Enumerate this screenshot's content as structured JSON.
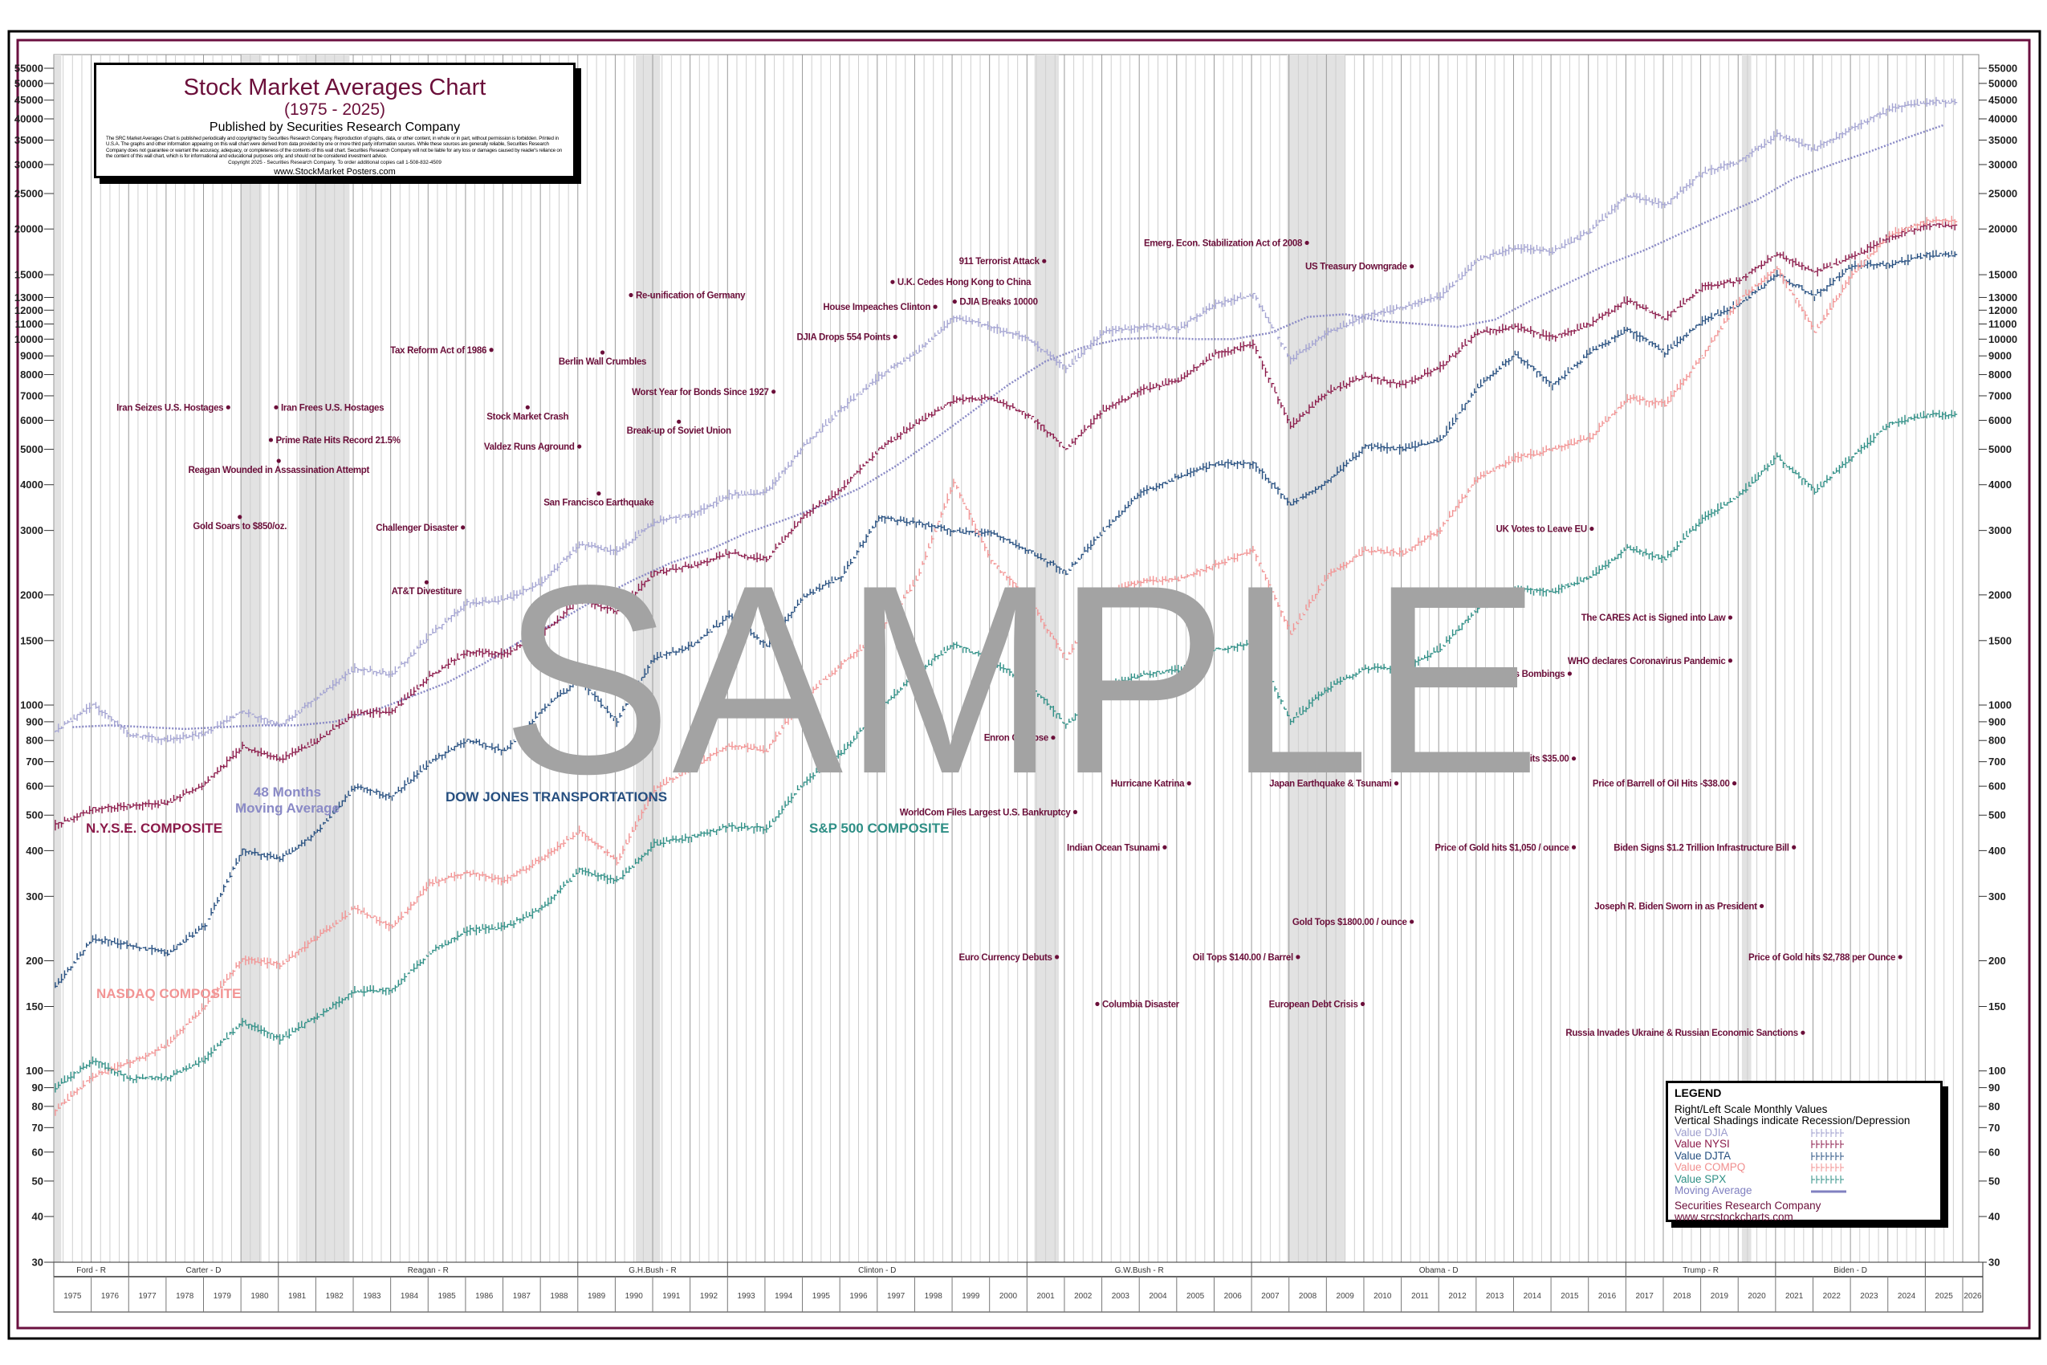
{
  "title_box": {
    "title": "Stock Market Averages Chart",
    "subtitle": "(1975 - 2025)",
    "publisher": "Published by Securities Research Company",
    "disclaimer": "The SRC Market Averages Chart is published periodically and copyrighted by Securities Research Company. Reproduction of graphs, data, or other content, in whole or in part, without permission is forbidden. Printed in U.S.A. The graphs and other information appearing on this wall chart were derived from data provided by one or more third party information sources. While these sources are generally reliable, Securities Research Company does not guarantee or warrant the accuracy, adequacy, or completeness of the contents of this wall chart. Securities Research Company will not be liable for any loss or damages caused by reader's reliance on the content of this wall chart, which is for informational and educational purposes only, and should not be considered investment advice.",
    "copyright": "Copyright 2025 - Securities Research Company. To order additional copies call 1-508-832-4509",
    "url": "www.StockMarket Posters.com"
  },
  "legend": {
    "heading": "LEGEND",
    "line1": "Right/Left Scale Monthly Values",
    "line2": "Vertical Shadings indicate Recession/Depression",
    "items": [
      {
        "label": "Value  DJIA",
        "color": "#9c9ccc",
        "symbol": "hlc-bars"
      },
      {
        "label": "Value  NYSI",
        "color": "#8b1a4a",
        "symbol": "hlc-bars"
      },
      {
        "label": "Value  DJTA",
        "color": "#264f80",
        "symbol": "hlc-bars"
      },
      {
        "label": "Value  COMPQ",
        "color": "#f08f8f",
        "symbol": "hlc-bars"
      },
      {
        "label": "Value  SPX",
        "color": "#2f8f86",
        "symbol": "hlc-bars"
      },
      {
        "label": "Moving Average",
        "color": "#8080c0",
        "symbol": "line"
      }
    ],
    "footer": "Securities Research Company  www.srcstockcharts.com"
  },
  "watermark": "SAMPLE",
  "colors": {
    "frame": "#6b1040",
    "annotation": "#6b0f3a",
    "recession": "#e2e2e2",
    "watermark": "#a3a3a3"
  },
  "chart_data": {
    "type": "line",
    "title": "Stock Market Averages Chart",
    "subtitle": "(1975 - 2025)",
    "y_scale": "log",
    "y_range": [
      30,
      55000
    ],
    "x_range": [
      1975,
      2026
    ],
    "y_ticks": [
      30,
      40,
      50,
      60,
      70,
      80,
      90,
      100,
      150,
      200,
      300,
      400,
      500,
      600,
      700,
      800,
      900,
      1000,
      1500,
      2000,
      3000,
      4000,
      5000,
      6000,
      7000,
      8000,
      9000,
      10000,
      11000,
      12000,
      13000,
      15000,
      20000,
      25000,
      30000,
      35000,
      40000,
      45000,
      50000,
      55000
    ],
    "y_tick_labels": [
      "30",
      "40",
      "50",
      "60",
      "70",
      "80",
      "90",
      "100",
      "150",
      "200",
      "300",
      "400",
      "500",
      "600",
      "700",
      "800",
      "900",
      "1000",
      "1500",
      "2000",
      "3000",
      "4000",
      "5000",
      "6000",
      "7000",
      "8000",
      "9000",
      "10000",
      "11000",
      "12000",
      "13000",
      "15000",
      "20000",
      "25000",
      "30000",
      "35000",
      "40000",
      "45000",
      "50000",
      "55000"
    ],
    "x_tick_labels": [
      "1975",
      "1976",
      "1977",
      "1978",
      "1979",
      "1980",
      "1981",
      "1982",
      "1983",
      "1984",
      "1985",
      "1986",
      "1987",
      "1988",
      "1989",
      "1990",
      "1991",
      "1992",
      "1993",
      "1994",
      "1995",
      "1996",
      "1997",
      "1998",
      "1999",
      "2000",
      "2001",
      "2002",
      "2003",
      "2004",
      "2005",
      "2006",
      "2007",
      "2008",
      "2009",
      "2010",
      "2011",
      "2012",
      "2013",
      "2014",
      "2015",
      "2016",
      "2017",
      "2018",
      "2019",
      "2020",
      "2021",
      "2022",
      "2023",
      "2024",
      "2025",
      "2026"
    ],
    "grid": "vertical",
    "legend_position": "bottom-right",
    "x": [
      1975,
      1976,
      1977,
      1978,
      1979,
      1980,
      1981,
      1982,
      1983,
      1984,
      1985,
      1986,
      1987,
      1988,
      1989,
      1990,
      1991,
      1992,
      1993,
      1994,
      1995,
      1996,
      1997,
      1998,
      1999,
      2000,
      2001,
      2002,
      2003,
      2004,
      2005,
      2006,
      2007,
      2008,
      2009,
      2010,
      2011,
      2012,
      2013,
      2014,
      2015,
      2016,
      2017,
      2018,
      2019,
      2020,
      2021,
      2022,
      2023,
      2024,
      2025
    ],
    "series": [
      {
        "name": "DJIA",
        "label": "",
        "color": "#a4a4d2",
        "values": [
          850,
          1000,
          830,
          800,
          840,
          960,
          880,
          1050,
          1260,
          1210,
          1550,
          1900,
          1940,
          2170,
          2750,
          2630,
          3170,
          3300,
          3750,
          3830,
          5100,
          6450,
          7900,
          9200,
          11500,
          10800,
          10000,
          8300,
          10450,
          10800,
          10700,
          12460,
          13260,
          8780,
          10430,
          11580,
          12200,
          13100,
          16500,
          17800,
          17400,
          19760,
          24700,
          23300,
          28500,
          30600,
          36300,
          33100,
          37700,
          42500,
          44500
        ]
      },
      {
        "name": "NYSI",
        "label": "N.Y.S.E. COMPOSITE",
        "color": "#8b1a4a",
        "values": [
          470,
          520,
          530,
          540,
          610,
          770,
          710,
          800,
          950,
          960,
          1200,
          1400,
          1380,
          1570,
          1950,
          1800,
          2300,
          2400,
          2600,
          2500,
          3300,
          3900,
          5000,
          5900,
          6800,
          6900,
          6200,
          5000,
          6400,
          7250,
          7750,
          9100,
          9700,
          5800,
          7200,
          7900,
          7500,
          8400,
          10400,
          10800,
          10100,
          11000,
          12800,
          11400,
          13900,
          14500,
          17100,
          15200,
          16800,
          19000,
          20500
        ]
      },
      {
        "name": "DJTA",
        "label": "DOW JONES TRANSPORTATIONS",
        "color": "#264f80",
        "values": [
          170,
          230,
          220,
          210,
          250,
          400,
          380,
          450,
          600,
          560,
          700,
          800,
          750,
          970,
          1180,
          900,
          1350,
          1450,
          1760,
          1450,
          1980,
          2250,
          3250,
          3150,
          2980,
          2950,
          2640,
          2300,
          3000,
          3800,
          4200,
          4560,
          4570,
          3540,
          4100,
          5100,
          5000,
          5300,
          7400,
          9100,
          7500,
          9200,
          10600,
          9200,
          11200,
          12500,
          15000,
          13100,
          15900,
          16000,
          17000
        ]
      },
      {
        "name": "COMPQ",
        "label": "NASDAQ COMPOSITE",
        "color": "#f29494",
        "values": [
          78,
          97,
          105,
          118,
          151,
          202,
          195,
          232,
          279,
          247,
          325,
          349,
          331,
          381,
          454,
          374,
          586,
          677,
          777,
          752,
          1052,
          1291,
          1570,
          2193,
          4069,
          2470,
          1950,
          1335,
          2003,
          2175,
          2205,
          2415,
          2652,
          1577,
          2269,
          2652,
          2605,
          3020,
          4177,
          4736,
          5007,
          5383,
          6903,
          6635,
          8973,
          12888,
          15645,
          10466,
          15011,
          19310,
          21000
        ]
      },
      {
        "name": "SPX",
        "label": "S&P 500 COMPOSITE",
        "color": "#2f8f86",
        "values": [
          90,
          107,
          95,
          96,
          108,
          136,
          122,
          141,
          165,
          167,
          211,
          242,
          247,
          278,
          353,
          330,
          417,
          436,
          466,
          459,
          616,
          741,
          970,
          1229,
          1469,
          1320,
          1148,
          880,
          1112,
          1212,
          1248,
          1418,
          1468,
          903,
          1115,
          1258,
          1258,
          1426,
          1848,
          2059,
          2044,
          2239,
          2674,
          2507,
          3231,
          3756,
          4766,
          3840,
          4770,
          5880,
          6200
        ]
      }
    ],
    "moving_average": {
      "label_line1": "48 Months",
      "label_line2": "Moving Average",
      "color": "#8a8ac6",
      "values": [
        870,
        880,
        870,
        860,
        870,
        880,
        880,
        900,
        960,
        1050,
        1150,
        1300,
        1500,
        1700,
        1950,
        2200,
        2450,
        2650,
        2950,
        3200,
        3500,
        3900,
        4500,
        5300,
        6300,
        7500,
        8700,
        9500,
        10000,
        10100,
        10000,
        10000,
        10400,
        11500,
        11700,
        11200,
        11000,
        10800,
        11300,
        12800,
        14300,
        16000,
        17500,
        19500,
        21700,
        24000,
        27500,
        30000,
        32500,
        35500,
        38500
      ]
    },
    "recessions": [
      [
        1975.0,
        1975.2
      ],
      [
        1980.0,
        1980.55
      ],
      [
        1981.55,
        1982.9
      ],
      [
        1990.55,
        1991.2
      ],
      [
        2001.2,
        2001.85
      ],
      [
        2007.95,
        2009.5
      ],
      [
        2020.1,
        2020.35
      ]
    ],
    "presidents": [
      {
        "label": "Ford - R",
        "start": 1975,
        "end": 1977
      },
      {
        "label": "Carter - D",
        "start": 1977,
        "end": 1981
      },
      {
        "label": "Reagan - R",
        "start": 1981,
        "end": 1989
      },
      {
        "label": "G.H.Bush - R",
        "start": 1989,
        "end": 1993
      },
      {
        "label": "Clinton - D",
        "start": 1993,
        "end": 2001
      },
      {
        "label": "G.W.Bush - R",
        "start": 2001,
        "end": 2007
      },
      {
        "label": "Obama - D",
        "start": 2007,
        "end": 2017
      },
      {
        "label": "Trump - R",
        "start": 2017,
        "end": 2021
      },
      {
        "label": "Biden - D",
        "start": 2021,
        "end": 2025
      },
      {
        "label": "",
        "start": 2025,
        "end": 2027
      }
    ],
    "annotations": [
      {
        "text": "Iran Seizes U.S. Hostages",
        "date": 1979.66
      },
      {
        "text": "Iran Frees U.S. Hostages",
        "date": 1980.94
      },
      {
        "text": "Prime Rate Hits Record 21.5%",
        "date": 1980.8
      },
      {
        "text": "Reagan Wounded in Assassination Attempt",
        "date": 1981.01
      },
      {
        "text": "Gold Soars to $850/oz.",
        "date": 1979.97
      },
      {
        "text": "Tax Reform Act of 1986",
        "date": 1986.69
      },
      {
        "text": "Challenger Disaster",
        "date": 1985.93
      },
      {
        "text": "AT&T Divestiture",
        "date": 1984.96
      },
      {
        "text": "Stock Market Crash",
        "date": 1987.66
      },
      {
        "text": "Valdez Runs Aground",
        "date": 1989.04
      },
      {
        "text": "Berlin Wall Crumbles",
        "date": 1989.66
      },
      {
        "text": "San Francisco Earthquake",
        "date": 1989.56
      },
      {
        "text": "Re-unification of Germany",
        "date": 1990.42
      },
      {
        "text": "Worst Year for Bonds Since 1927",
        "date": 1994.23
      },
      {
        "text": "Break-up of Soviet Union",
        "date": 1991.7
      },
      {
        "text": "DJIA Drops 554 Points",
        "date": 1997.48
      },
      {
        "text": "House Impeaches Clinton",
        "date": 1998.55
      },
      {
        "text": "U.K. Cedes Hong Kong to China",
        "date": 1997.41
      },
      {
        "text": "DJIA Breaks 10000",
        "date": 1999.07
      },
      {
        "text": "911 Terrorist Attack",
        "date": 2001.46
      },
      {
        "text": "Emerg. Econ. Stabilization Act of 2008",
        "date": 2008.48
      },
      {
        "text": "US Treasury Downgrade",
        "date": 2011.28
      },
      {
        "text": "Enron Collapse",
        "date": 2001.7
      },
      {
        "text": "Hurricane Katrina",
        "date": 2005.33
      },
      {
        "text": "Japan Earthquake & Tsunami",
        "date": 2010.87
      },
      {
        "text": "WorldCom Files Largest U.S. Bankruptcy",
        "date": 2002.29
      },
      {
        "text": "Indian Ocean Tsunami",
        "date": 2004.68
      },
      {
        "text": "Gold Tops $1800.00 / ounce",
        "date": 2011.28
      },
      {
        "text": "Euro Currency Debuts",
        "date": 2001.8
      },
      {
        "text": "Oil Tops $140.00 / Barrel",
        "date": 2008.24
      },
      {
        "text": "Columbia Disaster",
        "date": 2002.88
      },
      {
        "text": "European Debt Crisis",
        "date": 2009.97
      },
      {
        "text": "UK Votes to Leave EU",
        "date": 2016.09
      },
      {
        "text": "The CARES Act is Signed into Law",
        "date": 2019.79
      },
      {
        "text": "WHO declares Coronavirus Pandemic",
        "date": 2019.79
      },
      {
        "text": "Paris Bombings",
        "date": 2015.5
      },
      {
        "text": "Price of Oil hits $35.00",
        "date": 2015.61
      },
      {
        "text": "Price of Barrell of Oil Hits -$38.00",
        "date": 2019.9
      },
      {
        "text": "Price of Gold hits $1,050 / ounce",
        "date": 2015.61
      },
      {
        "text": "Biden Signs $1.2 Trillion Infrastructure Bill",
        "date": 2021.49
      },
      {
        "text": "Joseph R. Biden Sworn in as President",
        "date": 2020.63
      },
      {
        "text": "Price of Gold hits $2,788 per Ounce",
        "date": 2024.33
      },
      {
        "text": "Russia Invades Ukraine & Russian Economic Sanctions",
        "date": 2021.73
      }
    ]
  }
}
